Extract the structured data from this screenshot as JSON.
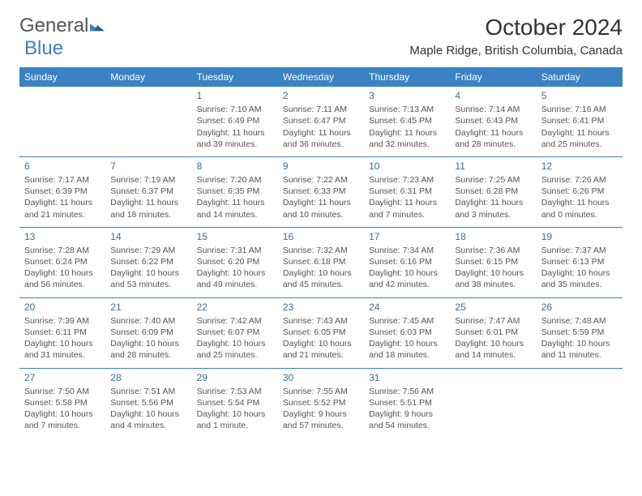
{
  "brand": {
    "part1": "General",
    "part2": "Blue"
  },
  "header": {
    "title": "October 2024",
    "location": "Maple Ridge, British Columbia, Canada"
  },
  "colors": {
    "header_bg": "#3b82c4",
    "header_fg": "#ffffff",
    "rule": "#3b82c4",
    "daynum": "#3b6fa0",
    "text": "#555555",
    "background": "#ffffff"
  },
  "weekdays": [
    "Sunday",
    "Monday",
    "Tuesday",
    "Wednesday",
    "Thursday",
    "Friday",
    "Saturday"
  ],
  "weeks": [
    [
      null,
      null,
      {
        "n": "1",
        "sr": "Sunrise: 7:10 AM",
        "ss": "Sunset: 6:49 PM",
        "dl1": "Daylight: 11 hours",
        "dl2": "and 39 minutes."
      },
      {
        "n": "2",
        "sr": "Sunrise: 7:11 AM",
        "ss": "Sunset: 6:47 PM",
        "dl1": "Daylight: 11 hours",
        "dl2": "and 36 minutes."
      },
      {
        "n": "3",
        "sr": "Sunrise: 7:13 AM",
        "ss": "Sunset: 6:45 PM",
        "dl1": "Daylight: 11 hours",
        "dl2": "and 32 minutes."
      },
      {
        "n": "4",
        "sr": "Sunrise: 7:14 AM",
        "ss": "Sunset: 6:43 PM",
        "dl1": "Daylight: 11 hours",
        "dl2": "and 28 minutes."
      },
      {
        "n": "5",
        "sr": "Sunrise: 7:16 AM",
        "ss": "Sunset: 6:41 PM",
        "dl1": "Daylight: 11 hours",
        "dl2": "and 25 minutes."
      }
    ],
    [
      {
        "n": "6",
        "sr": "Sunrise: 7:17 AM",
        "ss": "Sunset: 6:39 PM",
        "dl1": "Daylight: 11 hours",
        "dl2": "and 21 minutes."
      },
      {
        "n": "7",
        "sr": "Sunrise: 7:19 AM",
        "ss": "Sunset: 6:37 PM",
        "dl1": "Daylight: 11 hours",
        "dl2": "and 18 minutes."
      },
      {
        "n": "8",
        "sr": "Sunrise: 7:20 AM",
        "ss": "Sunset: 6:35 PM",
        "dl1": "Daylight: 11 hours",
        "dl2": "and 14 minutes."
      },
      {
        "n": "9",
        "sr": "Sunrise: 7:22 AM",
        "ss": "Sunset: 6:33 PM",
        "dl1": "Daylight: 11 hours",
        "dl2": "and 10 minutes."
      },
      {
        "n": "10",
        "sr": "Sunrise: 7:23 AM",
        "ss": "Sunset: 6:31 PM",
        "dl1": "Daylight: 11 hours",
        "dl2": "and 7 minutes."
      },
      {
        "n": "11",
        "sr": "Sunrise: 7:25 AM",
        "ss": "Sunset: 6:28 PM",
        "dl1": "Daylight: 11 hours",
        "dl2": "and 3 minutes."
      },
      {
        "n": "12",
        "sr": "Sunrise: 7:26 AM",
        "ss": "Sunset: 6:26 PM",
        "dl1": "Daylight: 11 hours",
        "dl2": "and 0 minutes."
      }
    ],
    [
      {
        "n": "13",
        "sr": "Sunrise: 7:28 AM",
        "ss": "Sunset: 6:24 PM",
        "dl1": "Daylight: 10 hours",
        "dl2": "and 56 minutes."
      },
      {
        "n": "14",
        "sr": "Sunrise: 7:29 AM",
        "ss": "Sunset: 6:22 PM",
        "dl1": "Daylight: 10 hours",
        "dl2": "and 53 minutes."
      },
      {
        "n": "15",
        "sr": "Sunrise: 7:31 AM",
        "ss": "Sunset: 6:20 PM",
        "dl1": "Daylight: 10 hours",
        "dl2": "and 49 minutes."
      },
      {
        "n": "16",
        "sr": "Sunrise: 7:32 AM",
        "ss": "Sunset: 6:18 PM",
        "dl1": "Daylight: 10 hours",
        "dl2": "and 45 minutes."
      },
      {
        "n": "17",
        "sr": "Sunrise: 7:34 AM",
        "ss": "Sunset: 6:16 PM",
        "dl1": "Daylight: 10 hours",
        "dl2": "and 42 minutes."
      },
      {
        "n": "18",
        "sr": "Sunrise: 7:36 AM",
        "ss": "Sunset: 6:15 PM",
        "dl1": "Daylight: 10 hours",
        "dl2": "and 38 minutes."
      },
      {
        "n": "19",
        "sr": "Sunrise: 7:37 AM",
        "ss": "Sunset: 6:13 PM",
        "dl1": "Daylight: 10 hours",
        "dl2": "and 35 minutes."
      }
    ],
    [
      {
        "n": "20",
        "sr": "Sunrise: 7:39 AM",
        "ss": "Sunset: 6:11 PM",
        "dl1": "Daylight: 10 hours",
        "dl2": "and 31 minutes."
      },
      {
        "n": "21",
        "sr": "Sunrise: 7:40 AM",
        "ss": "Sunset: 6:09 PM",
        "dl1": "Daylight: 10 hours",
        "dl2": "and 28 minutes."
      },
      {
        "n": "22",
        "sr": "Sunrise: 7:42 AM",
        "ss": "Sunset: 6:07 PM",
        "dl1": "Daylight: 10 hours",
        "dl2": "and 25 minutes."
      },
      {
        "n": "23",
        "sr": "Sunrise: 7:43 AM",
        "ss": "Sunset: 6:05 PM",
        "dl1": "Daylight: 10 hours",
        "dl2": "and 21 minutes."
      },
      {
        "n": "24",
        "sr": "Sunrise: 7:45 AM",
        "ss": "Sunset: 6:03 PM",
        "dl1": "Daylight: 10 hours",
        "dl2": "and 18 minutes."
      },
      {
        "n": "25",
        "sr": "Sunrise: 7:47 AM",
        "ss": "Sunset: 6:01 PM",
        "dl1": "Daylight: 10 hours",
        "dl2": "and 14 minutes."
      },
      {
        "n": "26",
        "sr": "Sunrise: 7:48 AM",
        "ss": "Sunset: 5:59 PM",
        "dl1": "Daylight: 10 hours",
        "dl2": "and 11 minutes."
      }
    ],
    [
      {
        "n": "27",
        "sr": "Sunrise: 7:50 AM",
        "ss": "Sunset: 5:58 PM",
        "dl1": "Daylight: 10 hours",
        "dl2": "and 7 minutes."
      },
      {
        "n": "28",
        "sr": "Sunrise: 7:51 AM",
        "ss": "Sunset: 5:56 PM",
        "dl1": "Daylight: 10 hours",
        "dl2": "and 4 minutes."
      },
      {
        "n": "29",
        "sr": "Sunrise: 7:53 AM",
        "ss": "Sunset: 5:54 PM",
        "dl1": "Daylight: 10 hours",
        "dl2": "and 1 minute."
      },
      {
        "n": "30",
        "sr": "Sunrise: 7:55 AM",
        "ss": "Sunset: 5:52 PM",
        "dl1": "Daylight: 9 hours",
        "dl2": "and 57 minutes."
      },
      {
        "n": "31",
        "sr": "Sunrise: 7:56 AM",
        "ss": "Sunset: 5:51 PM",
        "dl1": "Daylight: 9 hours",
        "dl2": "and 54 minutes."
      },
      null,
      null
    ]
  ]
}
